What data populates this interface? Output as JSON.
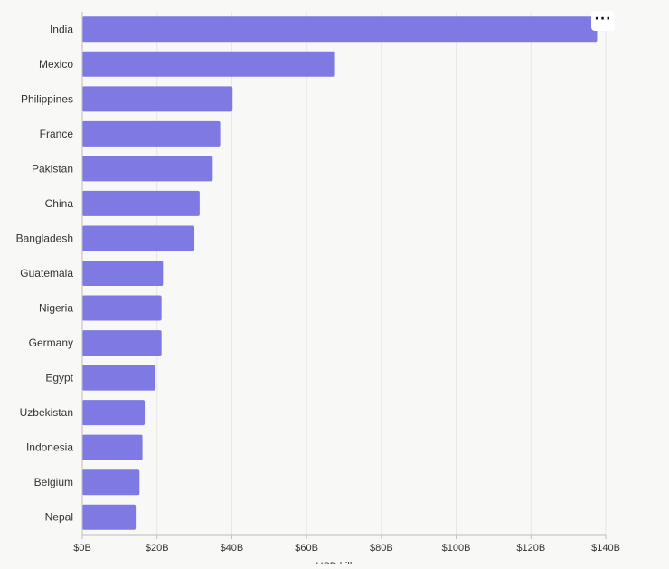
{
  "toolbar": {
    "more_icon": "more-horizontal-icon",
    "more_label": "···"
  },
  "colors": {
    "bar": "#7f79e3",
    "grid": "#e6e6e6",
    "axis": "#bdbdbd",
    "text": "#333333",
    "background": "#f8f8f6"
  },
  "chart_data": {
    "type": "bar",
    "orientation": "horizontal",
    "categories": [
      "India",
      "Mexico",
      "Philippines",
      "France",
      "Pakistan",
      "China",
      "Bangladesh",
      "Guatemala",
      "Nigeria",
      "Germany",
      "Egypt",
      "Uzbekistan",
      "Indonesia",
      "Belgium",
      "Nepal"
    ],
    "values": [
      137.7,
      67.6,
      40.2,
      36.9,
      34.9,
      31.4,
      30.0,
      21.6,
      21.2,
      21.2,
      19.6,
      16.7,
      16.1,
      15.3,
      14.3
    ],
    "xlabel": "USD billions",
    "ylabel": "",
    "xlim": [
      0,
      140
    ],
    "xticks": [
      "$0B",
      "$20B",
      "$40B",
      "$60B",
      "$80B",
      "$100B",
      "$120B",
      "$140B"
    ],
    "grid": true
  }
}
